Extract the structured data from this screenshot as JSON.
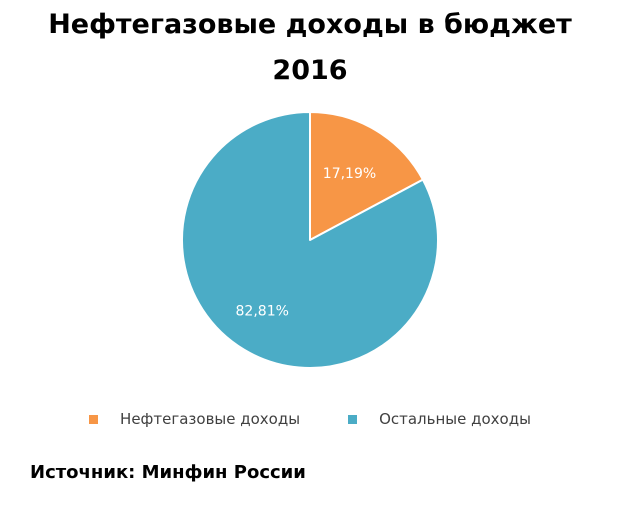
{
  "chart_data": {
    "type": "pie",
    "title_lines": [
      "Нефтегазовые доходы в бюджет",
      "2016"
    ],
    "slices": [
      {
        "label": "Нефтегазовые доходы",
        "value": 17.19,
        "value_label": "17,19%",
        "color": "#F79646"
      },
      {
        "label": "Остальные доходы",
        "value": 82.81,
        "value_label": "82,81%",
        "color": "#4BACC6"
      }
    ],
    "start": "12 o'clock",
    "direction": "clockwise",
    "legend_position": "bottom"
  },
  "source_note": "Источник: Минфин России"
}
